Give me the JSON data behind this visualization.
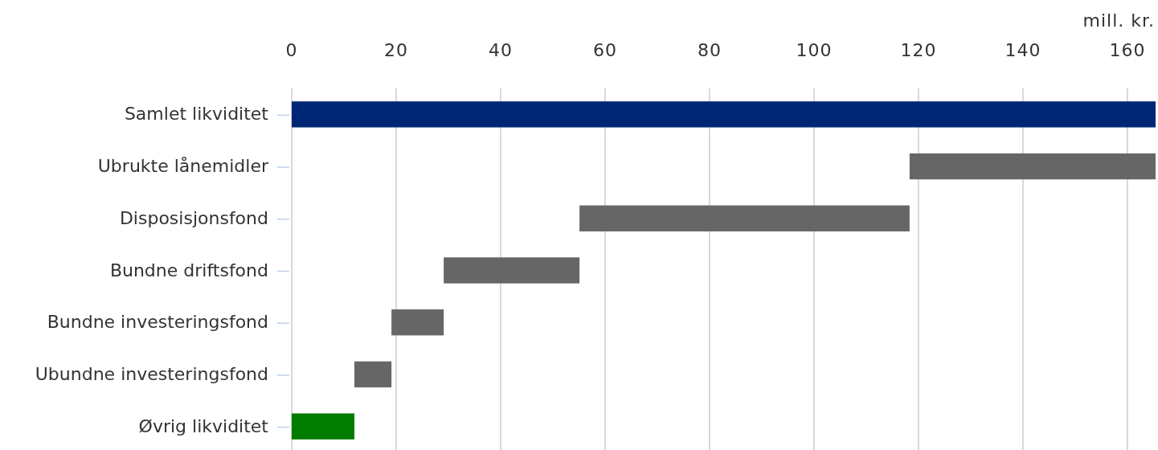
{
  "chart_data": {
    "type": "bar",
    "orientation": "horizontal",
    "xlabel": "mill. kr.",
    "categories": [
      "Samlet likviditet",
      "Ubrukte lånemidler",
      "Disposisjonsfond",
      "Bundne driftsfond",
      "Bundne investeringsfond",
      "Ubundne investeringsfond",
      "Øvrig likviditet"
    ],
    "values": [
      165.4,
      47.1,
      63.2,
      26,
      10,
      7.1,
      12
    ],
    "base": [
      0,
      118.3,
      55.1,
      29.1,
      19.1,
      12,
      0
    ],
    "colors": [
      "#002776",
      "#666666",
      "#666666",
      "#666666",
      "#666666",
      "#666666",
      "#007c00"
    ],
    "xlim": [
      0,
      165.4
    ],
    "xticks": [
      0,
      20,
      40,
      60,
      80,
      100,
      120,
      140,
      160
    ],
    "grid": "x"
  }
}
